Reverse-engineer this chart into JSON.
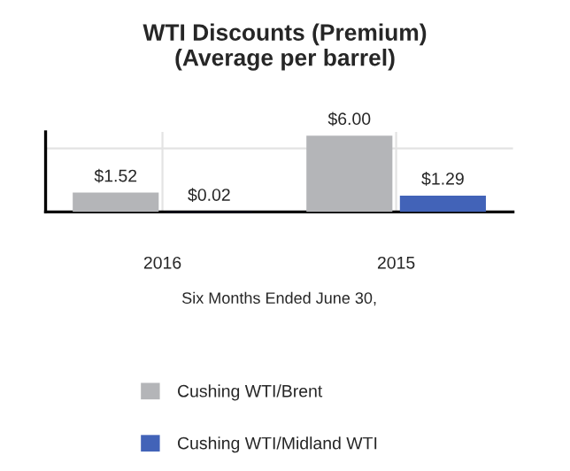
{
  "chart_data": {
    "type": "bar",
    "title": "WTI Discounts (Premium)\n(Average per barrel)",
    "xlabel": "Six Months Ended June 30,",
    "categories": [
      "2016",
      "2015"
    ],
    "series": [
      {
        "name": "Cushing WTI/Brent",
        "color": "#b4b5b8",
        "values": [
          1.52,
          6.0
        ],
        "value_labels": [
          "$1.52",
          "$6.00"
        ]
      },
      {
        "name": "Cushing WTI/Midland WTI",
        "color": "#4263b8",
        "values": [
          0.02,
          1.29
        ],
        "value_labels": [
          "$0.02",
          "$1.29"
        ]
      }
    ],
    "grid": true,
    "legend": "bottom",
    "tick_labels": "x"
  }
}
